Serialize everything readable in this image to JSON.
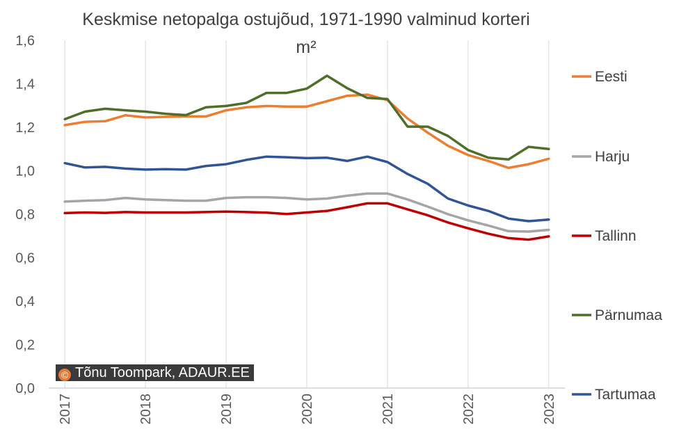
{
  "chart_data": {
    "type": "line",
    "title": "Keskmise netopalga ostujõud, 1971-1990 valminud korteri m²",
    "title_lines": [
      "Keskmise netopalga ostujõud, 1971-1990 valminud korteri",
      "m²"
    ],
    "xlabel": "",
    "ylabel": "",
    "ylim": [
      0.0,
      1.6
    ],
    "y_ticks": [
      "0,0",
      "0,2",
      "0,4",
      "0,6",
      "0,8",
      "1,0",
      "1,2",
      "1,4",
      "1,6"
    ],
    "x_ticks": [
      "2017",
      "2018",
      "2019",
      "2020",
      "2021",
      "2022",
      "2023"
    ],
    "grid": "vertical",
    "legend_position": "right",
    "x": [
      2017.0,
      2017.25,
      2017.5,
      2017.75,
      2018.0,
      2018.25,
      2018.5,
      2018.75,
      2019.0,
      2019.25,
      2019.5,
      2019.75,
      2020.0,
      2020.25,
      2020.5,
      2020.75,
      2021.0,
      2021.25,
      2021.5,
      2021.75,
      2022.0,
      2022.25,
      2022.5,
      2022.75,
      2023.0
    ],
    "series": [
      {
        "name": "Eesti",
        "color": "#ED7D31",
        "values": [
          1.21,
          1.225,
          1.228,
          1.255,
          1.245,
          1.248,
          1.25,
          1.25,
          1.278,
          1.292,
          1.298,
          1.295,
          1.295,
          1.32,
          1.345,
          1.35,
          1.325,
          1.24,
          1.175,
          1.115,
          1.072,
          1.045,
          1.013,
          1.03,
          1.055
        ]
      },
      {
        "name": "Harju",
        "color": "#A5A5A5",
        "values": [
          0.858,
          0.862,
          0.865,
          0.875,
          0.868,
          0.865,
          0.862,
          0.862,
          0.875,
          0.878,
          0.878,
          0.875,
          0.868,
          0.872,
          0.885,
          0.895,
          0.895,
          0.868,
          0.835,
          0.8,
          0.772,
          0.748,
          0.722,
          0.72,
          0.728
        ]
      },
      {
        "name": "Tallinn",
        "color": "#C00000",
        "values": [
          0.805,
          0.808,
          0.806,
          0.81,
          0.808,
          0.808,
          0.808,
          0.81,
          0.812,
          0.81,
          0.807,
          0.801,
          0.808,
          0.815,
          0.832,
          0.85,
          0.85,
          0.822,
          0.795,
          0.762,
          0.735,
          0.71,
          0.69,
          0.683,
          0.698
        ]
      },
      {
        "name": "Pärnumaa",
        "color": "#4E6E2A",
        "values": [
          1.237,
          1.272,
          1.285,
          1.278,
          1.272,
          1.262,
          1.256,
          1.292,
          1.298,
          1.312,
          1.358,
          1.358,
          1.378,
          1.437,
          1.38,
          1.335,
          1.33,
          1.203,
          1.203,
          1.16,
          1.095,
          1.06,
          1.052,
          1.11,
          1.1
        ]
      },
      {
        "name": "Tartumaa",
        "color": "#2F5597",
        "values": [
          1.035,
          1.015,
          1.018,
          1.01,
          1.005,
          1.007,
          1.005,
          1.022,
          1.03,
          1.05,
          1.065,
          1.062,
          1.058,
          1.06,
          1.045,
          1.065,
          1.04,
          0.985,
          0.94,
          0.872,
          0.84,
          0.815,
          0.78,
          0.768,
          0.775
        ]
      }
    ]
  },
  "watermark": {
    "icon": "©",
    "text": "Tõnu Toompark, ADAUR.EE",
    "background": "#3b3b3b",
    "icon_color": "#E07B39"
  }
}
